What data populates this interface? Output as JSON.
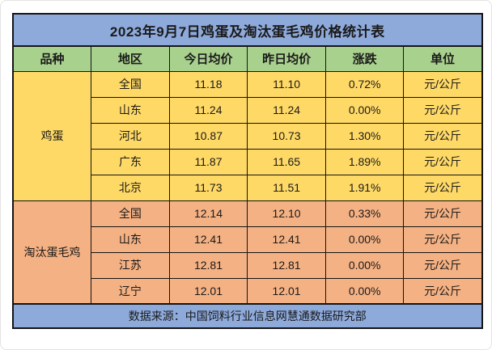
{
  "chart_data": {
    "type": "table",
    "title": "2023年9月7日鸡蛋及淘汰蛋毛鸡价格统计表",
    "columns": [
      "品种",
      "地区",
      "今日均价",
      "昨日均价",
      "涨跌",
      "单位"
    ],
    "sections": [
      {
        "name": "鸡蛋",
        "rows": [
          {
            "region": "全国",
            "today": "11.18",
            "yesterday": "11.10",
            "change": "0.72%",
            "unit": "元/公斤"
          },
          {
            "region": "山东",
            "today": "11.24",
            "yesterday": "11.24",
            "change": "0.00%",
            "unit": "元/公斤"
          },
          {
            "region": "河北",
            "today": "10.87",
            "yesterday": "10.73",
            "change": "1.30%",
            "unit": "元/公斤"
          },
          {
            "region": "广东",
            "today": "11.87",
            "yesterday": "11.65",
            "change": "1.89%",
            "unit": "元/公斤"
          },
          {
            "region": "北京",
            "today": "11.73",
            "yesterday": "11.51",
            "change": "1.91%",
            "unit": "元/公斤"
          }
        ]
      },
      {
        "name": "淘汰蛋毛鸡",
        "rows": [
          {
            "region": "全国",
            "today": "12.14",
            "yesterday": "12.10",
            "change": "0.33%",
            "unit": "元/公斤"
          },
          {
            "region": "山东",
            "today": "12.41",
            "yesterday": "12.41",
            "change": "0.00%",
            "unit": "元/公斤"
          },
          {
            "region": "江苏",
            "today": "12.81",
            "yesterday": "12.81",
            "change": "0.00%",
            "unit": "元/公斤"
          },
          {
            "region": "辽宁",
            "today": "12.01",
            "yesterday": "12.01",
            "change": "0.00%",
            "unit": "元/公斤"
          }
        ]
      }
    ],
    "source": "数据来源：中国饲料行业信息网慧通数据研究部",
    "colors": {
      "title_bg": "#8EAADB",
      "header_bg": "#A9D18E",
      "egg_section_bg": "#FFD966",
      "chicken_section_bg": "#F4B183",
      "footer_bg": "#8EAADB",
      "border": "#141414",
      "text": "#1a1a1a"
    },
    "layout": {
      "grid": true,
      "legend": "none"
    }
  }
}
